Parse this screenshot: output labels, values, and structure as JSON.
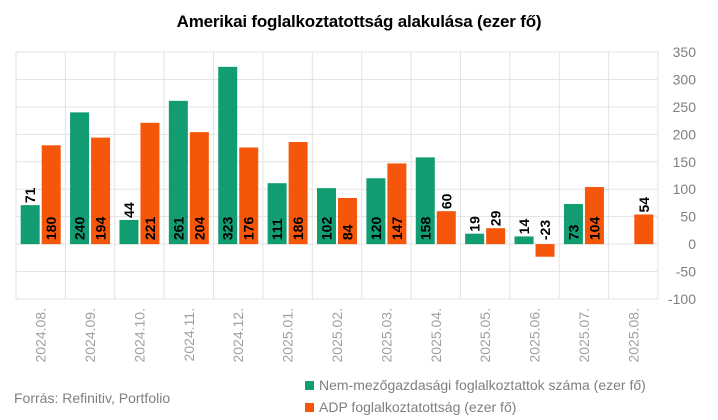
{
  "chart_data": {
    "type": "bar",
    "title": "Amerikai foglalkoztatottság alakulása (ezer fő)",
    "categories": [
      "2024.08.",
      "2024.09.",
      "2024.10.",
      "2024.11.",
      "2024.12.",
      "2025.01.",
      "2025.02.",
      "2025.03.",
      "2025.04.",
      "2025.05.",
      "2025.06.",
      "2025.07.",
      "2025.08."
    ],
    "series": [
      {
        "name": "Nem-mezőgazdasági foglalkoztattok száma (ezer fő)",
        "color": "#119c72",
        "values": [
          71,
          240,
          44,
          261,
          323,
          111,
          102,
          120,
          158,
          19,
          14,
          73,
          null
        ]
      },
      {
        "name": "ADP foglalkoztatottság (ezer fő)",
        "color": "#f5560a",
        "values": [
          180,
          194,
          221,
          204,
          176,
          186,
          84,
          147,
          60,
          29,
          -23,
          104,
          54
        ]
      }
    ],
    "ylim": [
      -100,
      350
    ],
    "yticks": [
      -100,
      -50,
      0,
      50,
      100,
      150,
      200,
      250,
      300,
      350
    ],
    "ytick_labels": [
      "-100",
      "-50",
      "0",
      "50",
      "100",
      "150",
      "200",
      "250",
      "300",
      "350"
    ],
    "grid": true,
    "legend_position": "bottom-right",
    "source": "Forrás: Refinitiv, Portfolio"
  }
}
